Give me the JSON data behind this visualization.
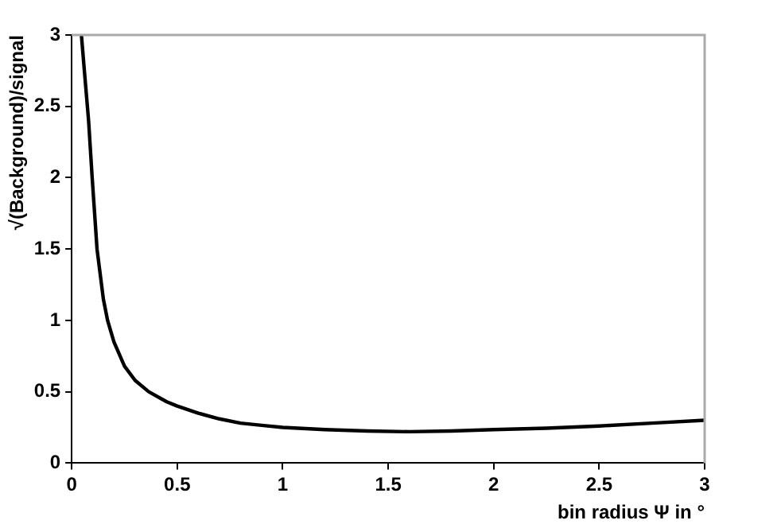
{
  "chart_data": {
    "type": "line",
    "xlabel": "bin radius Ψ in °",
    "ylabel": "√(Background)/signal",
    "x": [
      0.046,
      0.06,
      0.08,
      0.097,
      0.12,
      0.15,
      0.17,
      0.2,
      0.25,
      0.3,
      0.365,
      0.45,
      0.5,
      0.6,
      0.7,
      0.8,
      0.9,
      1.0,
      1.2,
      1.4,
      1.6,
      1.8,
      2.0,
      2.25,
      2.5,
      2.75,
      3.0
    ],
    "series": [
      {
        "color": "#000000",
        "values": [
          3,
          2.75,
          2.4,
          2.0,
          1.5,
          1.15,
          1.0,
          0.85,
          0.68,
          0.58,
          0.5,
          0.43,
          0.4,
          0.35,
          0.31,
          0.28,
          0.265,
          0.25,
          0.235,
          0.225,
          0.22,
          0.225,
          0.235,
          0.245,
          0.26,
          0.28,
          0.3
        ]
      }
    ],
    "xlim": [
      0,
      3
    ],
    "ylim": [
      0,
      3
    ],
    "xticks": [
      0,
      0.5,
      1,
      1.5,
      2,
      2.5,
      3
    ],
    "yticks": [
      0,
      0.5,
      1,
      1.5,
      2,
      2.5,
      3
    ],
    "grid": false,
    "legend": false,
    "marker": "none",
    "line_style": "solid"
  }
}
